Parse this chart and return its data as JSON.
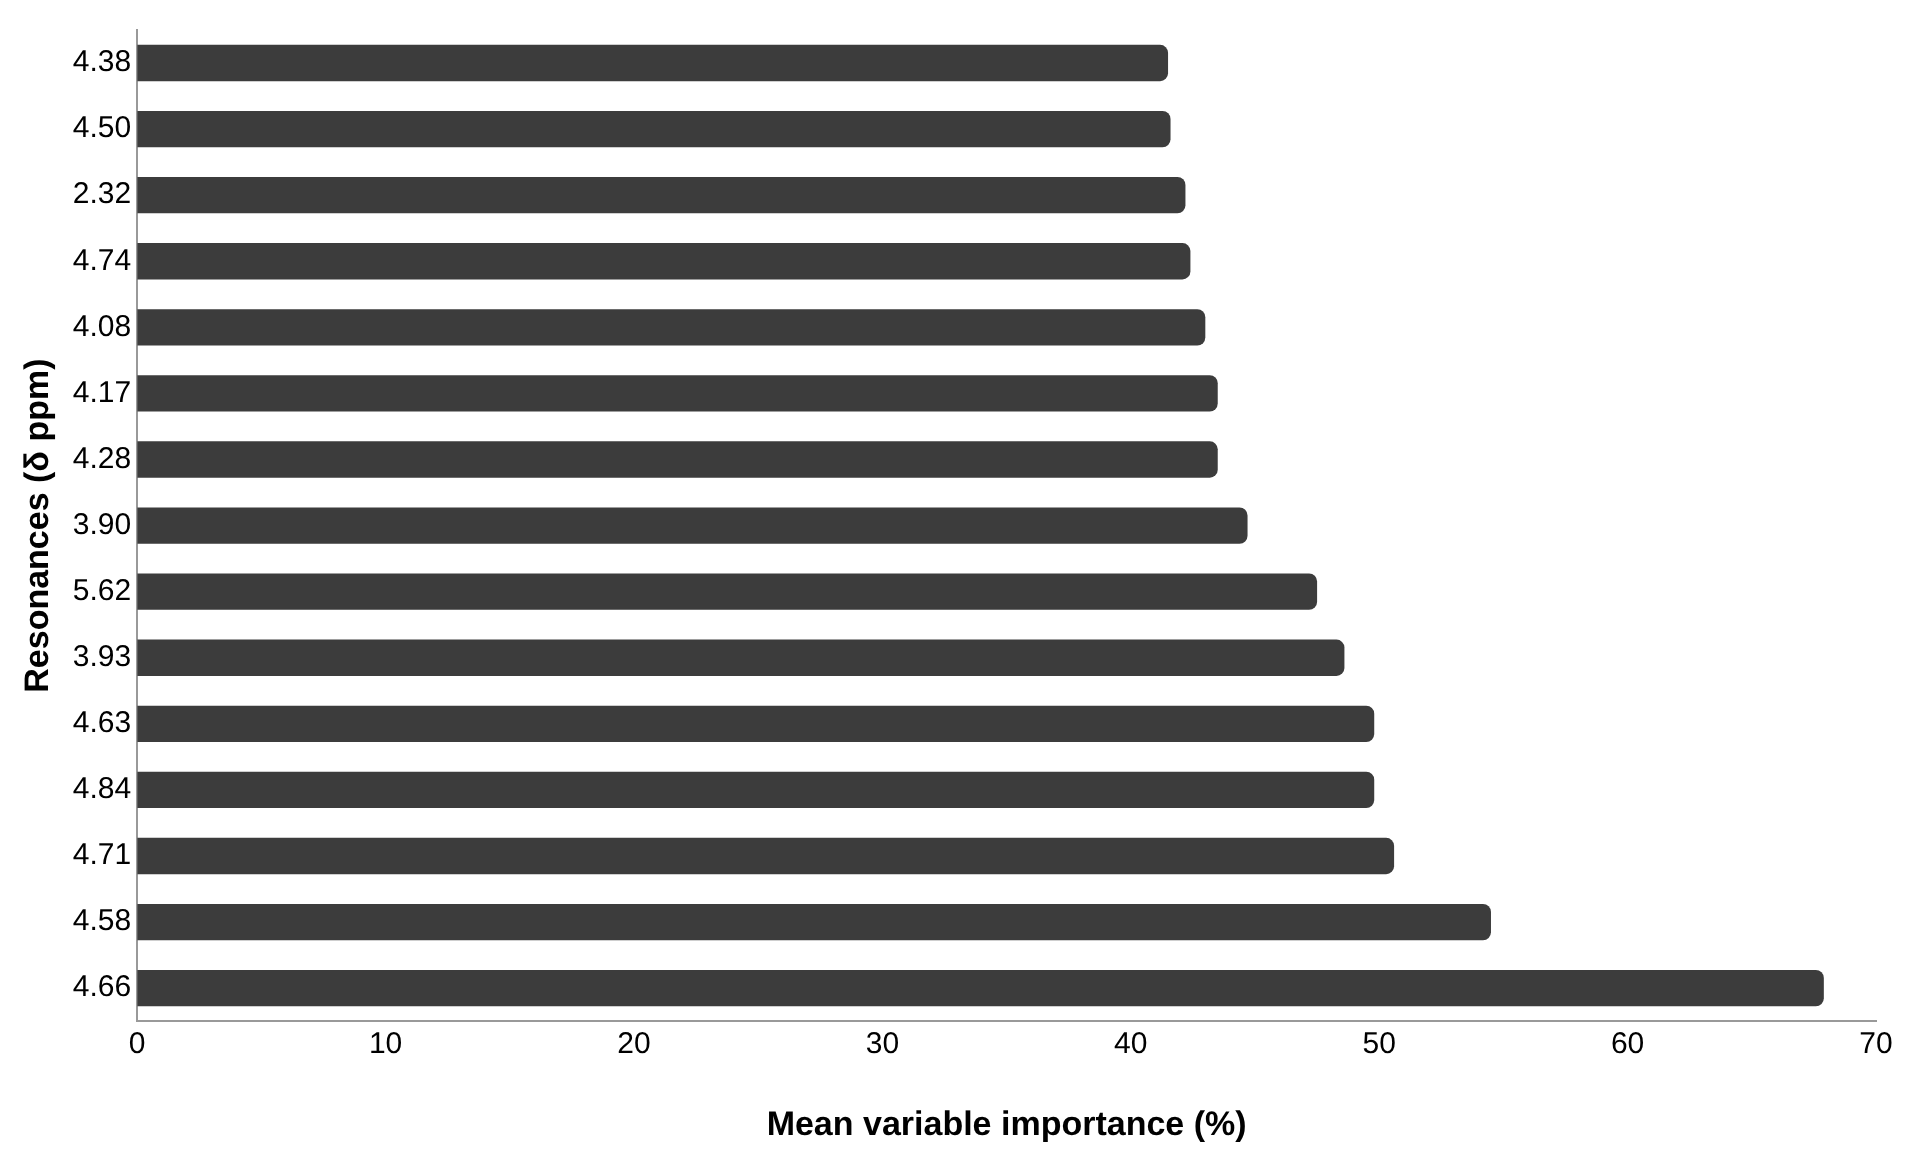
{
  "chart_data": {
    "type": "bar",
    "orientation": "horizontal",
    "xlabel": "Mean variable importance (%)",
    "ylabel": "Resonances (δ ppm)",
    "categories": [
      "4.38",
      "4.50",
      "2.32",
      "4.74",
      "4.08",
      "4.17",
      "4.28",
      "3.90",
      "5.62",
      "3.93",
      "4.63",
      "4.84",
      "4.71",
      "4.58",
      "4.66"
    ],
    "values": [
      41.5,
      41.6,
      42.2,
      42.4,
      43.0,
      43.5,
      43.5,
      44.7,
      47.5,
      48.6,
      49.8,
      49.8,
      50.6,
      54.5,
      67.9
    ],
    "color": "#3c3c3c",
    "xlim": [
      0,
      70
    ],
    "xticks": [
      0,
      10,
      20,
      30,
      40,
      50,
      60,
      70
    ],
    "grid": false,
    "legend": false
  }
}
